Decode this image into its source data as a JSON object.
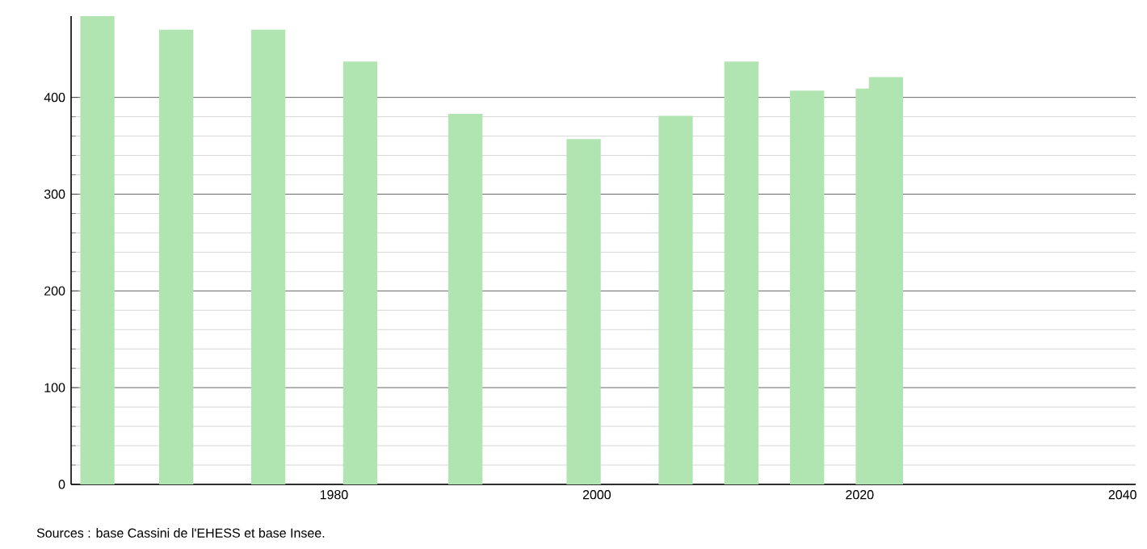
{
  "chart_data": {
    "type": "bar",
    "x": [
      1962,
      1968,
      1975,
      1982,
      1990,
      1999,
      2006,
      2011,
      2016,
      2021,
      2022
    ],
    "values": [
      484,
      470,
      470,
      437,
      383,
      357,
      381,
      437,
      407,
      409,
      421
    ],
    "color": "#b0e4b0",
    "xlim": [
      1960,
      2041
    ],
    "ylim": [
      0,
      484
    ],
    "xticks": [
      1980,
      2000,
      2020,
      2040
    ],
    "yticks": [
      0,
      100,
      200,
      300,
      400
    ],
    "grid": "y",
    "annotations": [
      "Sources : base Cassini de l'EHESS et base Insee."
    ]
  }
}
